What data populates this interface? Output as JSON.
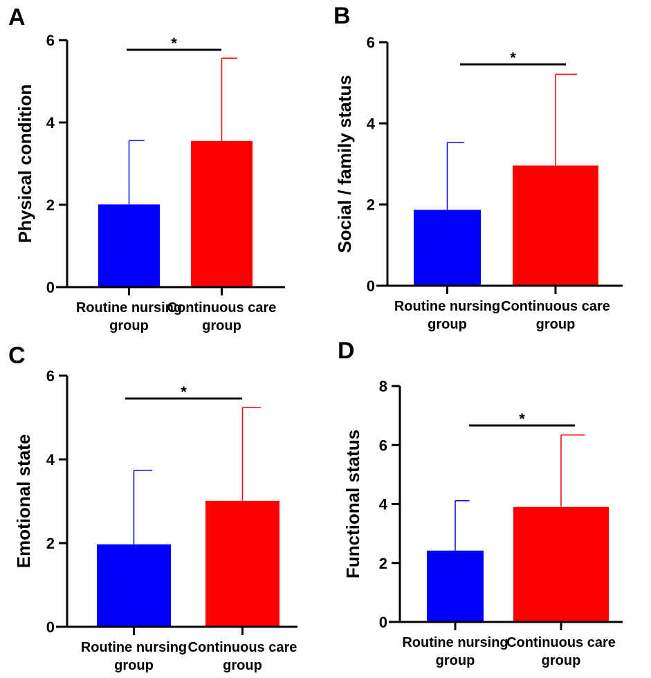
{
  "chart_data": [
    {
      "panel": "A",
      "type": "bar",
      "ylabel": "Physical condition",
      "ylim": [
        0,
        6
      ],
      "yticks": [
        0,
        2,
        4,
        6
      ],
      "categories": [
        [
          "Routine nursing",
          "group"
        ],
        [
          "Continuous care",
          "group"
        ]
      ],
      "values": [
        2.01,
        3.55
      ],
      "error_upper": [
        3.56,
        5.56
      ],
      "colors": [
        "#0000ff",
        "#ff0000"
      ],
      "significance": "*"
    },
    {
      "panel": "B",
      "type": "bar",
      "ylabel": "Social / family status",
      "ylim": [
        0,
        6
      ],
      "yticks": [
        0,
        2,
        4,
        6
      ],
      "categories": [
        [
          "Routine nursing",
          "group"
        ],
        [
          "Continuous care",
          "group"
        ]
      ],
      "values": [
        1.87,
        2.96
      ],
      "error_upper": [
        3.53,
        5.21
      ],
      "colors": [
        "#0000ff",
        "#ff0000"
      ],
      "significance": "*"
    },
    {
      "panel": "C",
      "type": "bar",
      "ylabel": "Emotional state",
      "ylim": [
        0,
        6
      ],
      "yticks": [
        0,
        2,
        4,
        6
      ],
      "categories": [
        [
          "Routine nursing",
          "group"
        ],
        [
          "Continuous care",
          "group"
        ]
      ],
      "values": [
        1.97,
        3.01
      ],
      "error_upper": [
        3.74,
        5.24
      ],
      "colors": [
        "#0000ff",
        "#ff0000"
      ],
      "significance": "*"
    },
    {
      "panel": "D",
      "type": "bar",
      "ylabel": "Functional status",
      "ylim": [
        0,
        8
      ],
      "yticks": [
        0,
        2,
        4,
        6,
        8
      ],
      "categories": [
        [
          "Routine nursing",
          "group"
        ],
        [
          "Continuous care",
          "group"
        ]
      ],
      "values": [
        2.42,
        3.9
      ],
      "error_upper": [
        4.11,
        6.34
      ],
      "colors": [
        "#0000ff",
        "#ff0000"
      ],
      "significance": "*"
    }
  ]
}
